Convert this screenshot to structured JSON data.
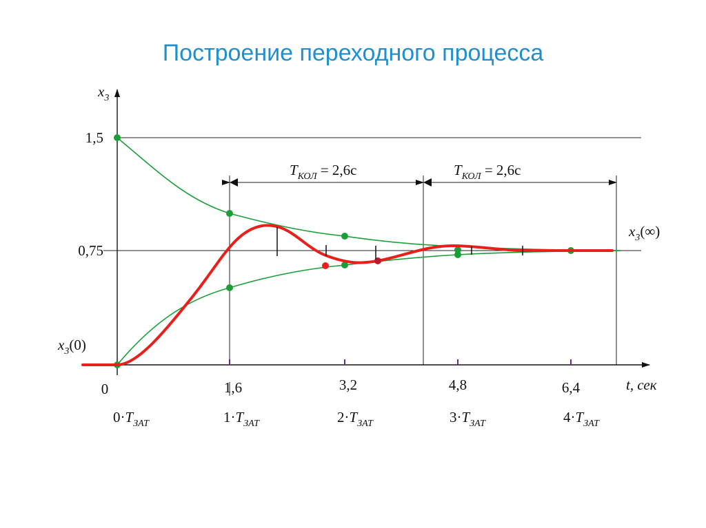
{
  "title": "Построение переходного процесса",
  "y_axis": {
    "main": "x",
    "sub": "3"
  },
  "x_axis": "t, сек",
  "y_labels": [
    "1,5",
    "0,75"
  ],
  "x0_label": {
    "main": "x",
    "sub": "3",
    "suffix": "(0)"
  },
  "xinf_label": {
    "main": "x",
    "sub": "3",
    "suffix": "(∞)"
  },
  "x_ticks": [
    "0",
    "1,6",
    "3,2",
    "4,8",
    "6,4"
  ],
  "t_labels": [
    {
      "prefix": "0·",
      "main": "T",
      "sub": "ЗАТ"
    },
    {
      "prefix": "1·",
      "main": "T",
      "sub": "ЗАТ"
    },
    {
      "prefix": "2·",
      "main": "T",
      "sub": "ЗАТ"
    },
    {
      "prefix": "3·",
      "main": "T",
      "sub": "ЗАТ"
    },
    {
      "prefix": "4·",
      "main": "T",
      "sub": "ЗАТ"
    }
  ],
  "periods": [
    {
      "main": "T",
      "sub": "КОЛ",
      "suffix": " = 2,6c"
    },
    {
      "main": "T",
      "sub": "КОЛ",
      "suffix": " = 2,6c"
    }
  ]
}
